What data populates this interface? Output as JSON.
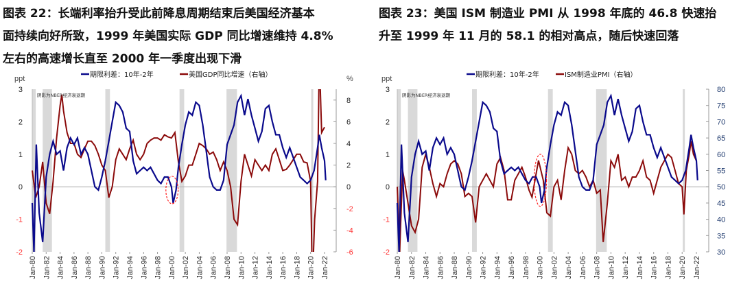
{
  "titles": [
    {
      "lines": [
        "图表 22：长端利率抬升受此前降息周期结束后美国经济基本",
        "面持续向好所致，1999 年美国实际 GDP 同比增速维持 4.8%",
        "左右的高速增长直至 2000 年一季度出现下滑"
      ]
    },
    {
      "lines": [
        "图表 23：美国 ISM 制造业 PMI 从 1998 年底的 46.8 快速抬",
        "升至 1999 年 11 月的 58.1 的相对高点，随后快速回落"
      ]
    }
  ],
  "colors": {
    "spread": "#0a0a8c",
    "right_series": "#8b0a0a",
    "recession": "#d9d9d9",
    "negative_tick": "#ff3333",
    "highlight": "#ff2020",
    "pmi_axis_text": "#1f3a6e"
  },
  "x_ticks": [
    "Jan-80",
    "Jan-82",
    "Jan-84",
    "Jan-86",
    "Jan-88",
    "Jan-90",
    "Jan-92",
    "Jan-94",
    "Jan-96",
    "Jan-98",
    "Jan-00",
    "Jan-02",
    "Jan-04",
    "Jan-06",
    "Jan-08",
    "Jan-10",
    "Jan-12",
    "Jan-14",
    "Jan-16",
    "Jan-18",
    "Jan-20",
    "Jan-22"
  ],
  "recessions": [
    [
      "1980-01",
      "1980-07"
    ],
    [
      "1981-07",
      "1982-11"
    ],
    [
      "1990-07",
      "1991-03"
    ],
    [
      "2001-03",
      "2001-11"
    ],
    [
      "2007-12",
      "2009-06"
    ],
    [
      "2020-02",
      "2020-04"
    ]
  ],
  "spread": [
    [
      "1980-01",
      -0.5
    ],
    [
      "1980-04",
      -2.0
    ],
    [
      "1980-08",
      1.3
    ],
    [
      "1981-01",
      -0.8
    ],
    [
      "1981-07",
      -1.7
    ],
    [
      "1982-01",
      0.3
    ],
    [
      "1982-07",
      1.0
    ],
    [
      "1983-01",
      1.4
    ],
    [
      "1983-07",
      1.0
    ],
    [
      "1984-01",
      1.1
    ],
    [
      "1984-07",
      0.5
    ],
    [
      "1985-01",
      1.2
    ],
    [
      "1985-07",
      1.5
    ],
    [
      "1986-01",
      1.3
    ],
    [
      "1986-07",
      1.5
    ],
    [
      "1987-01",
      1.0
    ],
    [
      "1987-07",
      1.2
    ],
    [
      "1988-01",
      1.0
    ],
    [
      "1988-07",
      0.5
    ],
    [
      "1989-01",
      0.0
    ],
    [
      "1989-07",
      -0.1
    ],
    [
      "1990-01",
      0.3
    ],
    [
      "1990-07",
      0.8
    ],
    [
      "1991-01",
      1.4
    ],
    [
      "1991-07",
      2.0
    ],
    [
      "1992-01",
      2.6
    ],
    [
      "1992-07",
      2.5
    ],
    [
      "1993-01",
      2.3
    ],
    [
      "1993-07",
      1.8
    ],
    [
      "1994-01",
      1.7
    ],
    [
      "1994-07",
      0.8
    ],
    [
      "1995-01",
      0.4
    ],
    [
      "1995-07",
      0.5
    ],
    [
      "1996-01",
      0.6
    ],
    [
      "1996-07",
      0.5
    ],
    [
      "1997-01",
      0.6
    ],
    [
      "1997-07",
      0.4
    ],
    [
      "1998-01",
      0.2
    ],
    [
      "1998-07",
      0.1
    ],
    [
      "1999-01",
      0.3
    ],
    [
      "1999-07",
      0.3
    ],
    [
      "2000-01",
      0.0
    ],
    [
      "2000-04",
      -0.5
    ],
    [
      "2000-09",
      -0.1
    ],
    [
      "2001-01",
      0.6
    ],
    [
      "2001-07",
      1.3
    ],
    [
      "2002-01",
      1.9
    ],
    [
      "2002-07",
      2.3
    ],
    [
      "2003-01",
      2.2
    ],
    [
      "2003-07",
      2.6
    ],
    [
      "2004-01",
      2.5
    ],
    [
      "2004-07",
      1.9
    ],
    [
      "2005-01",
      1.1
    ],
    [
      "2005-07",
      0.3
    ],
    [
      "2006-01",
      0.0
    ],
    [
      "2006-07",
      -0.1
    ],
    [
      "2007-01",
      -0.1
    ],
    [
      "2007-07",
      0.2
    ],
    [
      "2008-01",
      1.3
    ],
    [
      "2008-07",
      1.6
    ],
    [
      "2009-01",
      1.9
    ],
    [
      "2009-07",
      2.6
    ],
    [
      "2010-01",
      2.8
    ],
    [
      "2010-07",
      2.2
    ],
    [
      "2011-01",
      2.7
    ],
    [
      "2011-07",
      2.2
    ],
    [
      "2012-01",
      1.8
    ],
    [
      "2012-07",
      1.4
    ],
    [
      "2013-01",
      1.7
    ],
    [
      "2013-07",
      2.4
    ],
    [
      "2014-01",
      2.5
    ],
    [
      "2014-07",
      2.0
    ],
    [
      "2015-01",
      1.6
    ],
    [
      "2015-07",
      1.6
    ],
    [
      "2016-01",
      1.2
    ],
    [
      "2016-07",
      0.9
    ],
    [
      "2017-01",
      1.2
    ],
    [
      "2017-07",
      0.9
    ],
    [
      "2018-01",
      0.6
    ],
    [
      "2018-07",
      0.3
    ],
    [
      "2019-01",
      0.2
    ],
    [
      "2019-07",
      0.1
    ],
    [
      "2020-01",
      0.2
    ],
    [
      "2020-07",
      0.5
    ],
    [
      "2021-01",
      1.2
    ],
    [
      "2021-04",
      1.6
    ],
    [
      "2021-08",
      1.2
    ],
    [
      "2022-01",
      0.8
    ],
    [
      "2022-03",
      0.2
    ]
  ],
  "chart_data": [
    {
      "type": "line",
      "legend": [
        "期限利差：10年-2年",
        "美国GDP同比增速（右轴）"
      ],
      "legend_placement": "top",
      "left_axis_label": "ppt",
      "right_axis_label": "%",
      "note": "阴影为NBER经济衰退期",
      "ylim": [
        -2,
        3
      ],
      "y_ticks": [
        3,
        2,
        1,
        0,
        -1,
        -2
      ],
      "y2lim": [
        -6,
        9
      ],
      "y2_ticks": [
        8,
        6,
        4,
        2,
        0,
        -2,
        -4,
        -6
      ],
      "series2": [
        [
          "1980-01",
          1.5
        ],
        [
          "1980-07",
          -1.0
        ],
        [
          "1981-01",
          0.0
        ],
        [
          "1981-07",
          2.3
        ],
        [
          "1982-01",
          -1.5
        ],
        [
          "1982-07",
          -2.5
        ],
        [
          "1983-01",
          0.5
        ],
        [
          "1983-07",
          4.5
        ],
        [
          "1984-01",
          7.5
        ],
        [
          "1984-04",
          8.5
        ],
        [
          "1984-07",
          7.0
        ],
        [
          "1985-01",
          5.0
        ],
        [
          "1985-07",
          4.0
        ],
        [
          "1986-01",
          4.0
        ],
        [
          "1986-07",
          3.0
        ],
        [
          "1987-01",
          2.7
        ],
        [
          "1987-07",
          3.5
        ],
        [
          "1988-01",
          4.2
        ],
        [
          "1988-07",
          4.2
        ],
        [
          "1989-01",
          3.8
        ],
        [
          "1989-07",
          3.0
        ],
        [
          "1990-01",
          2.0
        ],
        [
          "1990-07",
          1.5
        ],
        [
          "1991-01",
          -1.0
        ],
        [
          "1991-07",
          0.0
        ],
        [
          "1992-01",
          2.5
        ],
        [
          "1992-07",
          3.5
        ],
        [
          "1993-01",
          3.0
        ],
        [
          "1993-07",
          2.5
        ],
        [
          "1994-01",
          3.5
        ],
        [
          "1994-07",
          4.3
        ],
        [
          "1995-01",
          3.0
        ],
        [
          "1995-07",
          2.5
        ],
        [
          "1996-01",
          3.0
        ],
        [
          "1996-07",
          4.0
        ],
        [
          "1997-01",
          4.3
        ],
        [
          "1997-07",
          4.5
        ],
        [
          "1998-01",
          4.5
        ],
        [
          "1998-07",
          4.3
        ],
        [
          "1999-01",
          4.8
        ],
        [
          "1999-07",
          4.6
        ],
        [
          "2000-01",
          4.5
        ],
        [
          "2000-07",
          5.0
        ],
        [
          "2001-01",
          2.3
        ],
        [
          "2001-07",
          0.5
        ],
        [
          "2002-01",
          1.0
        ],
        [
          "2002-07",
          2.0
        ],
        [
          "2003-01",
          2.0
        ],
        [
          "2003-07",
          3.0
        ],
        [
          "2004-01",
          4.0
        ],
        [
          "2004-07",
          3.8
        ],
        [
          "2005-01",
          3.5
        ],
        [
          "2005-07",
          3.0
        ],
        [
          "2006-01",
          3.2
        ],
        [
          "2006-07",
          2.5
        ],
        [
          "2007-01",
          1.5
        ],
        [
          "2007-07",
          2.3
        ],
        [
          "2008-01",
          1.5
        ],
        [
          "2008-07",
          0.0
        ],
        [
          "2009-01",
          -3.0
        ],
        [
          "2009-07",
          -3.5
        ],
        [
          "2010-01",
          0.5
        ],
        [
          "2010-07",
          3.0
        ],
        [
          "2011-01",
          2.0
        ],
        [
          "2011-07",
          1.0
        ],
        [
          "2012-01",
          2.5
        ],
        [
          "2012-07",
          2.0
        ],
        [
          "2013-01",
          1.5
        ],
        [
          "2013-07",
          2.0
        ],
        [
          "2014-01",
          1.5
        ],
        [
          "2014-07",
          3.0
        ],
        [
          "2015-01",
          3.5
        ],
        [
          "2015-07",
          2.5
        ],
        [
          "2016-01",
          1.5
        ],
        [
          "2016-07",
          1.6
        ],
        [
          "2017-01",
          2.0
        ],
        [
          "2017-07",
          2.5
        ],
        [
          "2018-01",
          3.0
        ],
        [
          "2018-07",
          3.0
        ],
        [
          "2019-01",
          2.3
        ],
        [
          "2019-07",
          2.2
        ],
        [
          "2020-01",
          0.5
        ],
        [
          "2020-04",
          -9.0
        ],
        [
          "2020-08",
          -3.0
        ],
        [
          "2021-01",
          0.5
        ],
        [
          "2021-04",
          12.0
        ],
        [
          "2021-08",
          5.0
        ],
        [
          "2022-01",
          5.5
        ]
      ],
      "highlight_window": [
        "1999-07",
        "2000-09"
      ]
    },
    {
      "type": "line",
      "legend": [
        "期限利差：10年-2年",
        "ISM制造业PMI（右轴）"
      ],
      "legend_placement": "top",
      "left_axis_label": "ppt",
      "note": "阴影为NBER经济衰退期",
      "ylim": [
        -2,
        3
      ],
      "y_ticks": [
        3,
        2,
        1,
        0,
        -1,
        -2
      ],
      "y2lim": [
        30,
        80
      ],
      "y2_ticks": [
        80,
        75,
        70,
        65,
        60,
        55,
        50,
        45,
        40,
        35,
        30
      ],
      "series2": [
        [
          "1980-01",
          50
        ],
        [
          "1980-05",
          30
        ],
        [
          "1980-10",
          55
        ],
        [
          "1981-01",
          52
        ],
        [
          "1981-07",
          45
        ],
        [
          "1982-01",
          38
        ],
        [
          "1982-07",
          36
        ],
        [
          "1983-01",
          40
        ],
        [
          "1983-07",
          56
        ],
        [
          "1984-01",
          60
        ],
        [
          "1984-07",
          56
        ],
        [
          "1985-01",
          51
        ],
        [
          "1985-07",
          47
        ],
        [
          "1986-01",
          51
        ],
        [
          "1986-07",
          50
        ],
        [
          "1987-01",
          54
        ],
        [
          "1987-07",
          57
        ],
        [
          "1988-01",
          58
        ],
        [
          "1988-07",
          57
        ],
        [
          "1989-01",
          54
        ],
        [
          "1989-07",
          47
        ],
        [
          "1990-01",
          48
        ],
        [
          "1990-07",
          47
        ],
        [
          "1991-01",
          39
        ],
        [
          "1991-07",
          50
        ],
        [
          "1992-01",
          52
        ],
        [
          "1992-07",
          54
        ],
        [
          "1993-01",
          52
        ],
        [
          "1993-07",
          50
        ],
        [
          "1994-01",
          57
        ],
        [
          "1994-07",
          59
        ],
        [
          "1995-01",
          55
        ],
        [
          "1995-07",
          46
        ],
        [
          "1996-01",
          46
        ],
        [
          "1996-07",
          52
        ],
        [
          "1997-01",
          54
        ],
        [
          "1997-07",
          56
        ],
        [
          "1998-01",
          53
        ],
        [
          "1998-07",
          49
        ],
        [
          "1998-12",
          46.8
        ],
        [
          "1999-07",
          54
        ],
        [
          "1999-11",
          58.1
        ],
        [
          "2000-07",
          52
        ],
        [
          "2001-01",
          42
        ],
        [
          "2001-07",
          41
        ],
        [
          "2002-01",
          50
        ],
        [
          "2002-07",
          52
        ],
        [
          "2003-01",
          46
        ],
        [
          "2003-07",
          55
        ],
        [
          "2004-01",
          62
        ],
        [
          "2004-07",
          60
        ],
        [
          "2005-01",
          55
        ],
        [
          "2005-07",
          54
        ],
        [
          "2006-01",
          55
        ],
        [
          "2006-07",
          53
        ],
        [
          "2007-01",
          50
        ],
        [
          "2007-07",
          52
        ],
        [
          "2008-01",
          48
        ],
        [
          "2008-07",
          49
        ],
        [
          "2008-12",
          33
        ],
        [
          "2009-07",
          45
        ],
        [
          "2010-01",
          58
        ],
        [
          "2010-07",
          56
        ],
        [
          "2011-01",
          60
        ],
        [
          "2011-07",
          52
        ],
        [
          "2012-01",
          53
        ],
        [
          "2012-07",
          50
        ],
        [
          "2013-01",
          53
        ],
        [
          "2013-07",
          53
        ],
        [
          "2014-01",
          55
        ],
        [
          "2014-07",
          58
        ],
        [
          "2015-01",
          53
        ],
        [
          "2015-07",
          52
        ],
        [
          "2016-01",
          48
        ],
        [
          "2016-07",
          52
        ],
        [
          "2017-01",
          56
        ],
        [
          "2017-07",
          58
        ],
        [
          "2018-01",
          60
        ],
        [
          "2018-07",
          59
        ],
        [
          "2019-01",
          55
        ],
        [
          "2019-07",
          51
        ],
        [
          "2020-01",
          50
        ],
        [
          "2020-04",
          41.5
        ],
        [
          "2020-08",
          55
        ],
        [
          "2021-01",
          60
        ],
        [
          "2021-04",
          64
        ],
        [
          "2021-08",
          60
        ],
        [
          "2022-01",
          58
        ]
      ],
      "highlight_window": [
        "1999-07",
        "2000-09"
      ]
    }
  ]
}
